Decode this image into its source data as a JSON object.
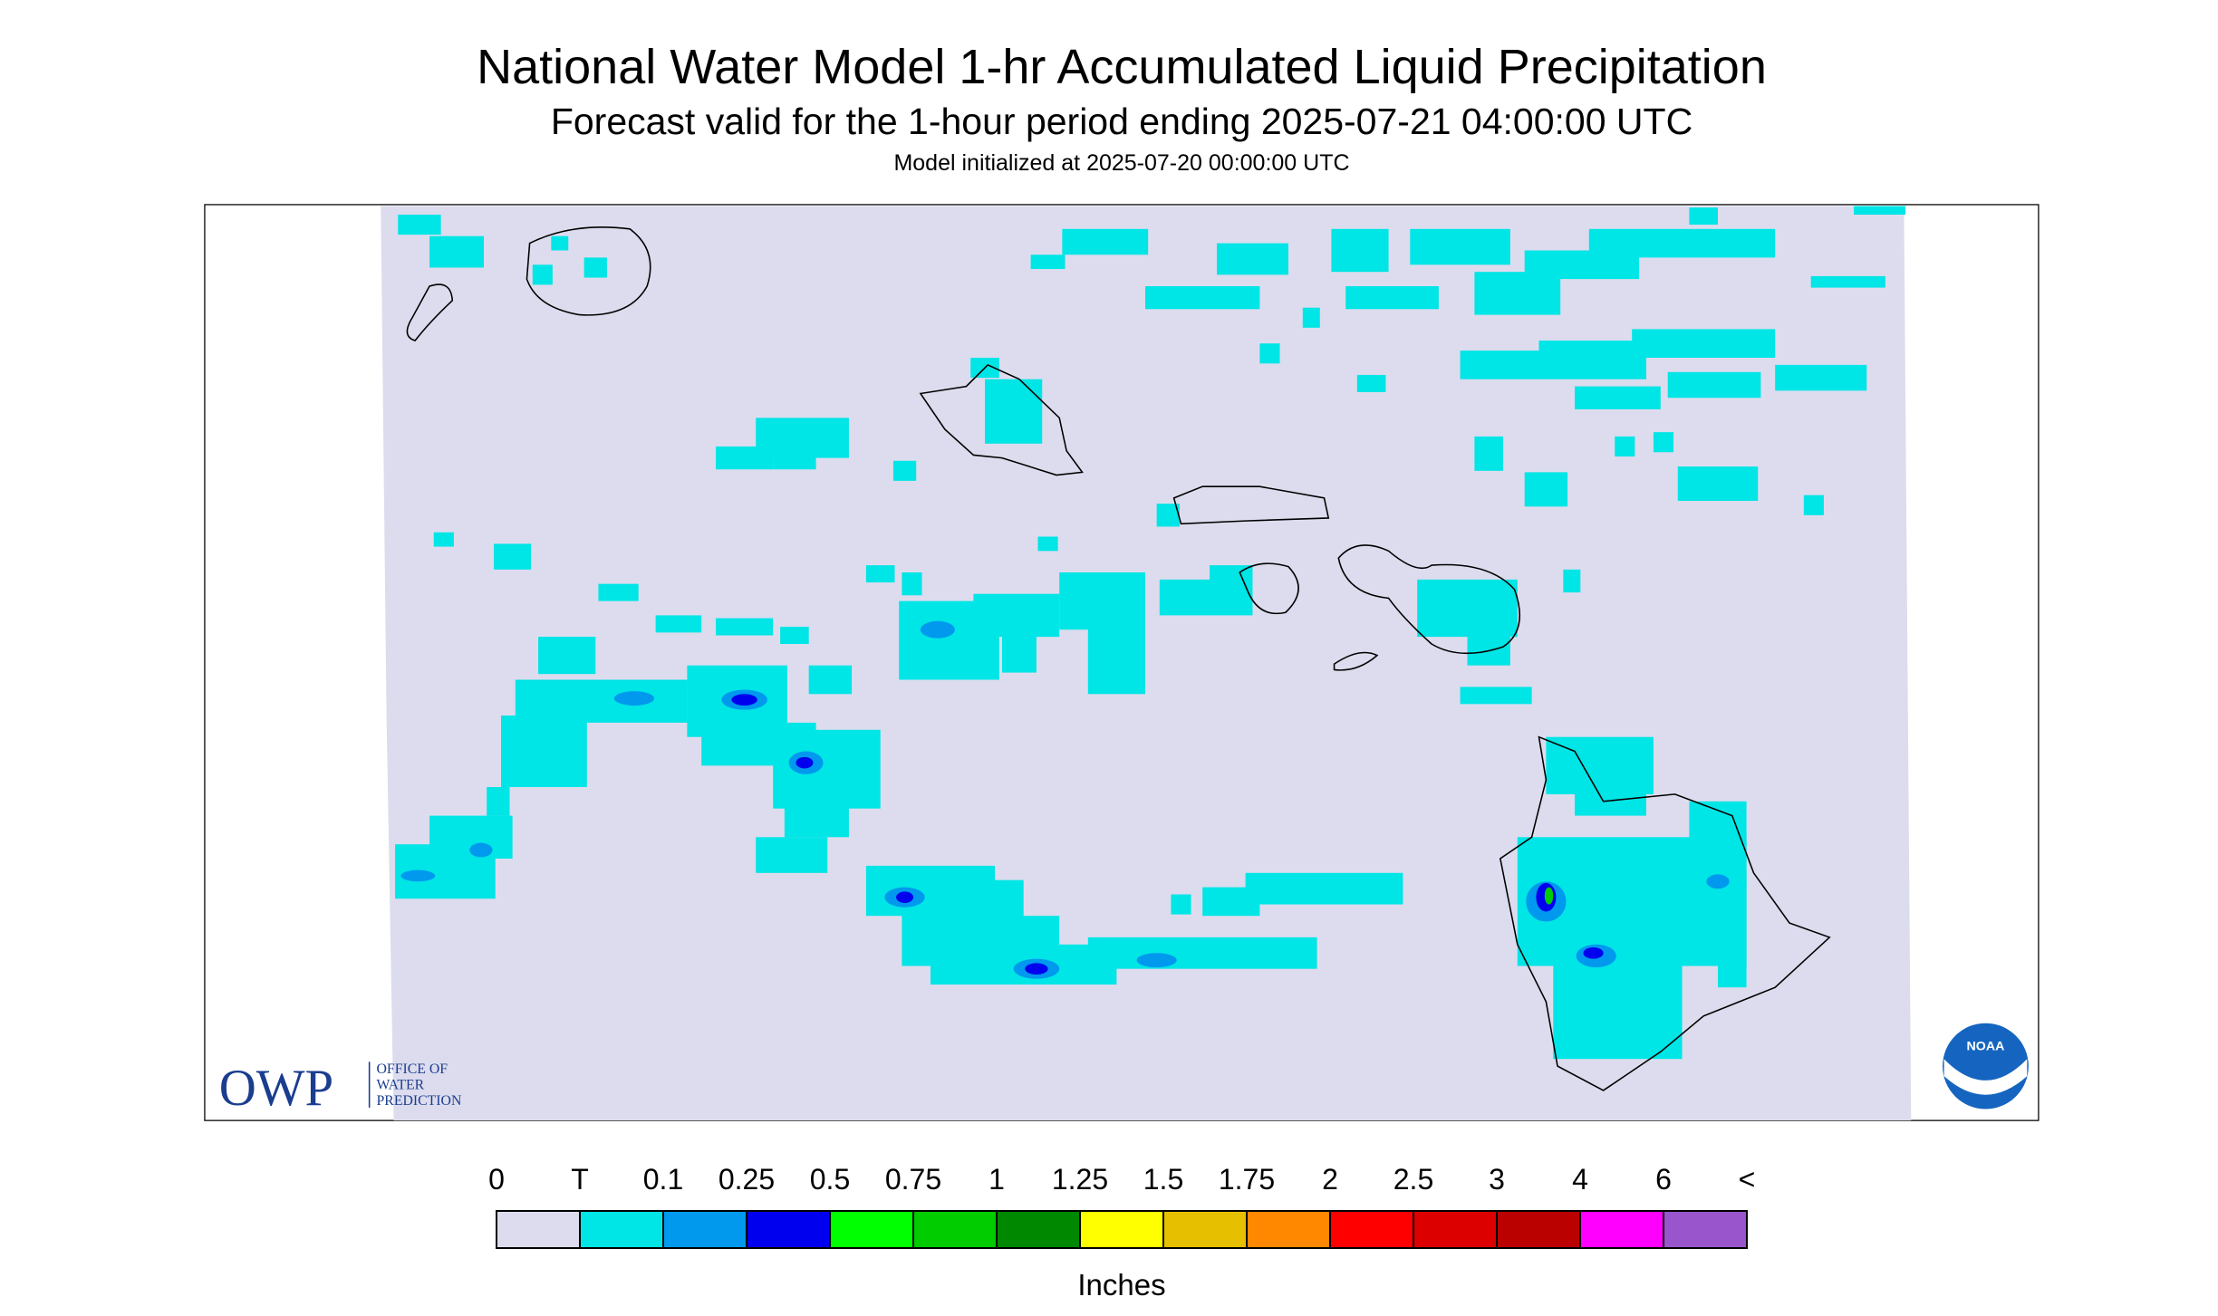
{
  "header": {
    "title": "National Water Model 1-hr Accumulated Liquid Precipitation",
    "subtitle": "Forecast valid for the 1-hour period ending 2025-07-21 04:00:00 UTC",
    "init": "Model initialized at 2025-07-20 00:00:00 UTC"
  },
  "logos": {
    "owp": "OWP",
    "owp_lines": [
      "OFFICE OF",
      "WATER",
      "PREDICTION"
    ],
    "noaa": "NOAA"
  },
  "legend": {
    "labels": [
      "0",
      "T",
      "0.1",
      "0.25",
      "0.5",
      "0.75",
      "1",
      "1.25",
      "1.5",
      "1.75",
      "2",
      "2.5",
      "3",
      "4",
      "6",
      "<"
    ],
    "colors": [
      "#dcdcee",
      "#00e5e5",
      "#0099ee",
      "#0000ee",
      "#00ff00",
      "#00cc00",
      "#008800",
      "#ffff00",
      "#e6c000",
      "#ff8800",
      "#ff0000",
      "#dd0000",
      "#bb0000",
      "#ff00ff",
      "#9955cc"
    ],
    "unit": "Inches"
  }
}
